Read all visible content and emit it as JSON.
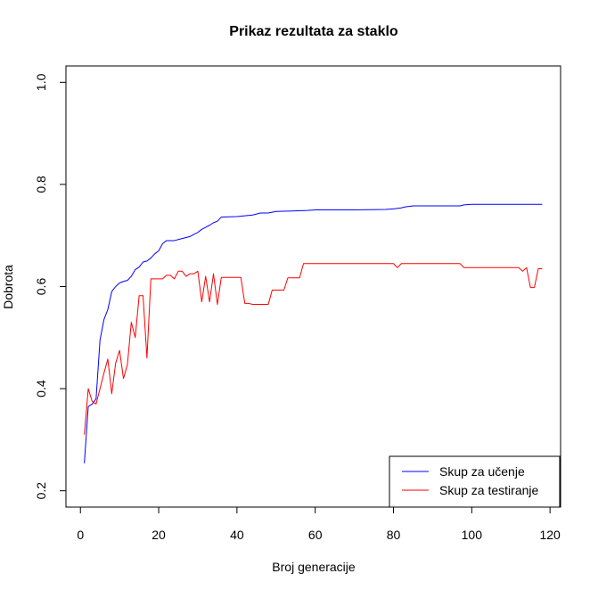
{
  "chart_data": {
    "type": "line",
    "title": "Prikaz rezultata za staklo",
    "xlabel": "Broj generacije",
    "ylabel": "Dobrota",
    "xlim": [
      -3.7,
      122.7
    ],
    "ylim": [
      0.168,
      1.032
    ],
    "xticks": [
      0,
      20,
      40,
      60,
      80,
      100,
      120
    ],
    "yticks": [
      0.2,
      0.4,
      0.6,
      0.8,
      1.0
    ],
    "ytick_labels": [
      "0.2",
      "0.4",
      "0.6",
      "0.8",
      "1.0"
    ],
    "grid": false,
    "legend_position": "bottom-right",
    "series": [
      {
        "name": "Skup za učenje",
        "color": "#0000ff",
        "x": [
          1,
          2,
          3,
          4,
          5,
          6,
          7,
          8,
          9,
          10,
          11,
          12,
          13,
          14,
          15,
          16,
          17,
          18,
          19,
          20,
          21,
          22,
          23,
          24,
          25,
          26,
          27,
          28,
          29,
          30,
          31,
          32,
          33,
          34,
          35,
          36,
          40,
          44,
          46,
          48,
          50,
          54,
          58,
          60,
          70,
          78,
          80,
          82,
          83,
          85,
          90,
          97,
          98,
          100,
          118
        ],
        "y": [
          0.254,
          0.365,
          0.37,
          0.38,
          0.495,
          0.535,
          0.555,
          0.59,
          0.6,
          0.607,
          0.61,
          0.612,
          0.62,
          0.633,
          0.638,
          0.648,
          0.65,
          0.656,
          0.664,
          0.67,
          0.684,
          0.69,
          0.69,
          0.69,
          0.692,
          0.694,
          0.696,
          0.698,
          0.702,
          0.706,
          0.712,
          0.716,
          0.72,
          0.725,
          0.728,
          0.736,
          0.737,
          0.74,
          0.744,
          0.744,
          0.747,
          0.748,
          0.749,
          0.75,
          0.75,
          0.751,
          0.752,
          0.754,
          0.756,
          0.758,
          0.758,
          0.758,
          0.76,
          0.761,
          0.761
        ]
      },
      {
        "name": "Skup za testiranje",
        "color": "#ff0000",
        "x": [
          1,
          2,
          3,
          4,
          5,
          6,
          7,
          8,
          9,
          10,
          11,
          12,
          13,
          14,
          15,
          16,
          17,
          18,
          19,
          20,
          21,
          22,
          23,
          24,
          25,
          26,
          27,
          28,
          29,
          30,
          31,
          32,
          33,
          34,
          35,
          36,
          37,
          38,
          39,
          40,
          41,
          42,
          43,
          44,
          45,
          46,
          47,
          48,
          49,
          50,
          51,
          52,
          53,
          54,
          55,
          56,
          57,
          58,
          59,
          60,
          70,
          80,
          81,
          82,
          90,
          96,
          97,
          98,
          110,
          112,
          113,
          114,
          115,
          116,
          117,
          118
        ],
        "y": [
          0.31,
          0.4,
          0.375,
          0.37,
          0.4,
          0.43,
          0.458,
          0.39,
          0.45,
          0.475,
          0.42,
          0.447,
          0.53,
          0.5,
          0.582,
          0.582,
          0.46,
          0.615,
          0.615,
          0.615,
          0.615,
          0.622,
          0.622,
          0.615,
          0.63,
          0.63,
          0.62,
          0.625,
          0.625,
          0.63,
          0.57,
          0.62,
          0.57,
          0.625,
          0.565,
          0.618,
          0.618,
          0.618,
          0.618,
          0.618,
          0.618,
          0.567,
          0.567,
          0.565,
          0.565,
          0.565,
          0.565,
          0.565,
          0.593,
          0.593,
          0.593,
          0.593,
          0.617,
          0.617,
          0.617,
          0.617,
          0.645,
          0.645,
          0.645,
          0.645,
          0.645,
          0.645,
          0.637,
          0.645,
          0.645,
          0.645,
          0.645,
          0.637,
          0.637,
          0.637,
          0.63,
          0.637,
          0.598,
          0.598,
          0.635,
          0.635
        ]
      }
    ]
  }
}
